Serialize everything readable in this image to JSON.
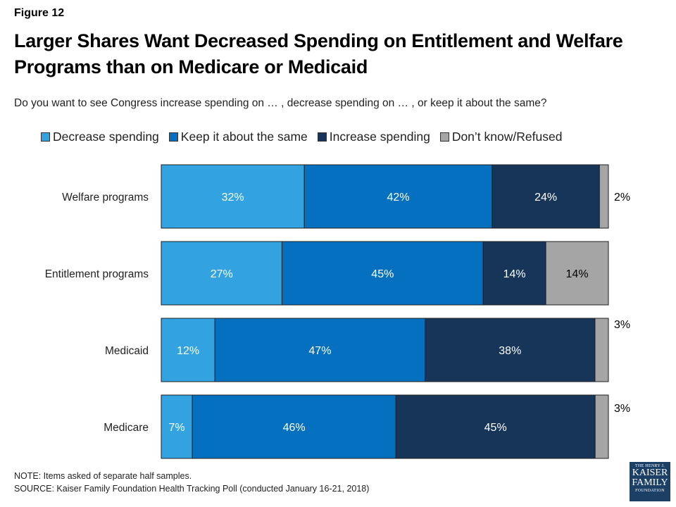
{
  "figure_label": "Figure 12",
  "title": "Larger Shares Want Decreased Spending on Entitlement and Welfare Programs than on Medicare or Medicaid",
  "subtitle": "Do you want to see Congress increase spending on … , decrease spending on … , or keep it about the same?",
  "note": "NOTE: Items asked of separate half samples.",
  "source": "SOURCE: Kaiser Family Foundation Health Tracking Poll (conducted January 16-21, 2018)",
  "logo": {
    "line1": "THE HENRY J.",
    "line2": "KAISER",
    "line3": "FAMILY",
    "line4": "FOUNDATION"
  },
  "colors": {
    "decrease": "#32a2e0",
    "keep": "#0570c0",
    "increase": "#163559",
    "dontknow": "#a5a5a5"
  },
  "chart_data": {
    "type": "bar",
    "orientation": "horizontal",
    "stacked": true,
    "categories": [
      "Welfare programs",
      "Entitlement programs",
      "Medicaid",
      "Medicare"
    ],
    "series": [
      {
        "name": "Decrease spending",
        "color_key": "decrease",
        "values": [
          32,
          27,
          12,
          7
        ],
        "labels": [
          "32%",
          "27%",
          "12%",
          "7%"
        ]
      },
      {
        "name": "Keep it about the same",
        "color_key": "keep",
        "values": [
          42,
          45,
          47,
          46
        ],
        "labels": [
          "42%",
          "45%",
          "47%",
          "46%"
        ]
      },
      {
        "name": "Increase spending",
        "color_key": "increase",
        "values": [
          24,
          14,
          38,
          45
        ],
        "labels": [
          "24%",
          "14%",
          "38%",
          "45%"
        ]
      },
      {
        "name": "Don’t know/Refused",
        "color_key": "dontknow",
        "values": [
          2,
          14,
          3,
          3
        ],
        "labels": [
          "2%",
          "14%",
          "3%",
          "3%"
        ]
      }
    ],
    "xlim": [
      0,
      100
    ],
    "legend_position": "top",
    "grid": false
  }
}
